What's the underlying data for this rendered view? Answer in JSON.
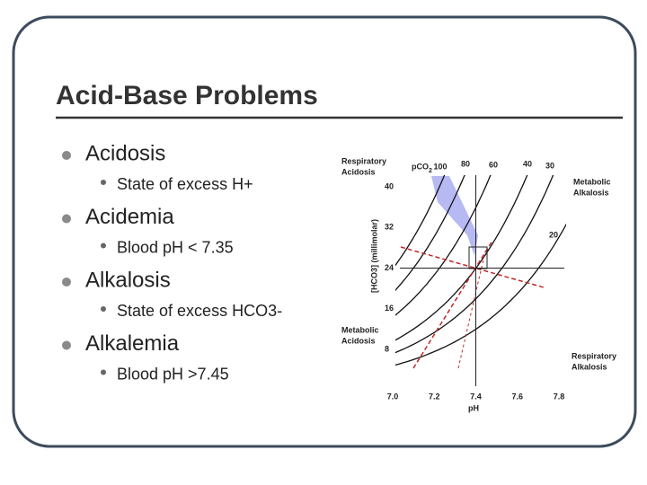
{
  "slide": {
    "title": "Acid-Base Problems",
    "bullets": [
      {
        "text": "Acidosis",
        "sub": "State of excess H+"
      },
      {
        "text": "Acidemia",
        "sub": "Blood pH < 7.35"
      },
      {
        "text": "Alkalosis",
        "sub": "State of excess HCO3-"
      },
      {
        "text": "Alkalemia",
        "sub": "Blood pH >7.45"
      }
    ],
    "figure": {
      "respiratory_acidosis": [
        "Respiratory",
        "Acidosis"
      ],
      "metabolic_alkalosis": [
        "Metabolic",
        "Alkalosis"
      ],
      "metabolic_acidosis": [
        "Metabolic",
        "Acidosis"
      ],
      "respiratory_alkalosis": [
        "Respiratory",
        "Alkalosis"
      ],
      "pco2_label": "pCO",
      "pco2_sub": "2",
      "isobars": [
        "100",
        "80",
        "60",
        "40",
        "30",
        "20"
      ],
      "y_axis_label": "[HCO3] (millimolar)",
      "yticks": [
        "40",
        "32",
        "24",
        "16",
        "8"
      ],
      "x_axis_label": "pH",
      "xticks": [
        "7.0",
        "7.2",
        "7.4",
        "7.6",
        "7.8"
      ]
    }
  }
}
